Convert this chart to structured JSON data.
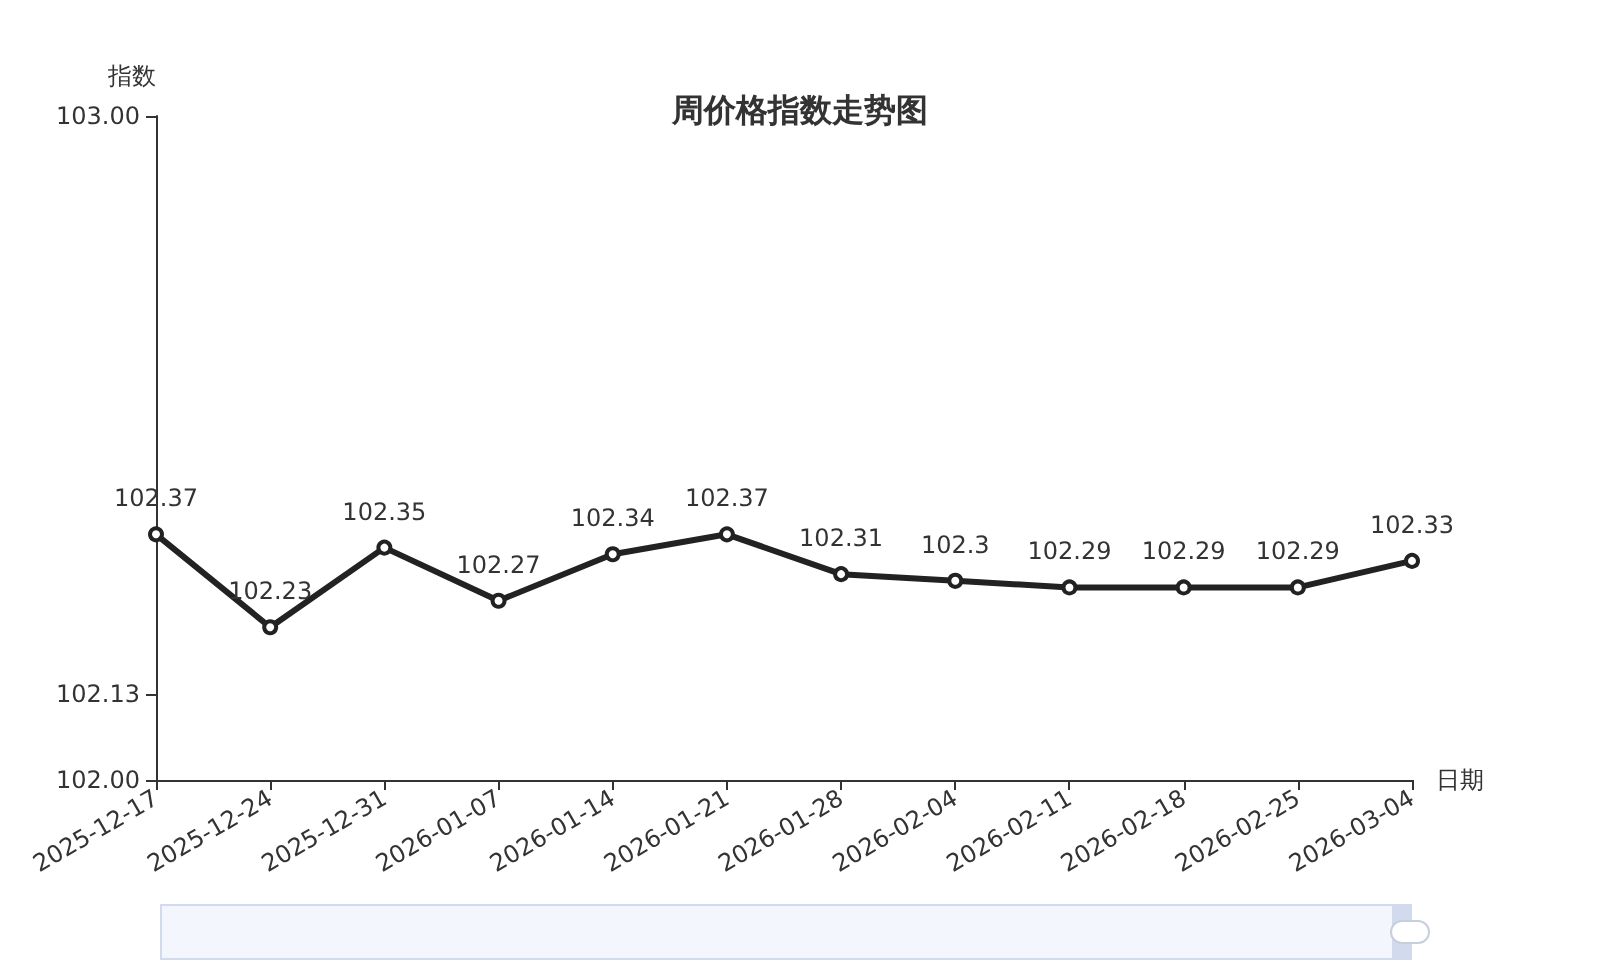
{
  "chart_data": {
    "type": "line",
    "title": "周价格指数走势图",
    "xlabel": "日期",
    "ylabel": "指数",
    "categories": [
      "2025-12-17",
      "2025-12-24",
      "2025-12-31",
      "2026-01-07",
      "2026-01-14",
      "2026-01-21",
      "2026-01-28",
      "2026-02-04",
      "2026-02-11",
      "2026-02-18",
      "2026-02-25",
      "2026-03-04"
    ],
    "series": [
      {
        "color": "#222222",
        "values": [
          102.37,
          102.23,
          102.35,
          102.27,
          102.34,
          102.37,
          102.31,
          102.3,
          102.29,
          102.29,
          102.29,
          102.33
        ]
      }
    ],
    "ylim": [
      102,
      103
    ],
    "yticks": [
      {
        "value": 102,
        "label": "102.00"
      },
      {
        "value": 102.13,
        "label": "102.13"
      },
      {
        "value": 103,
        "label": "103.00"
      }
    ],
    "data_labels": true,
    "grid": false,
    "marker": "circle",
    "line_style": "solid"
  }
}
